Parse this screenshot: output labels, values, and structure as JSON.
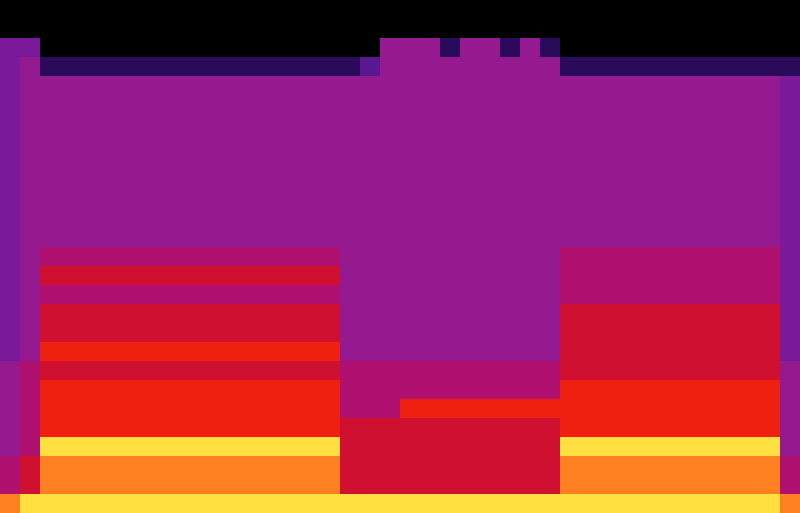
{
  "chart_data": {
    "type": "heatmap",
    "tick_labels": false,
    "color_range": [
      0,
      10
    ],
    "cells": [
      [
        0,
        0,
        0,
        0,
        0,
        0,
        0,
        0,
        0,
        0,
        0,
        0,
        0,
        0,
        0,
        0,
        0,
        0,
        0,
        0,
        0,
        0,
        0,
        0,
        0,
        0,
        0,
        0,
        0,
        0,
        0,
        0,
        0,
        0,
        0,
        0,
        0,
        0,
        0,
        0
      ],
      [
        0,
        0,
        0,
        0,
        0,
        0,
        0,
        0,
        0,
        0,
        0,
        0,
        0,
        0,
        0,
        0,
        0,
        0,
        0,
        0,
        0,
        0,
        0,
        0,
        0,
        0,
        0,
        0,
        0,
        0,
        0,
        0,
        0,
        0,
        0,
        0,
        0,
        0,
        0,
        0
      ],
      [
        3,
        3,
        0,
        0,
        0,
        0,
        0,
        0,
        0,
        0,
        0,
        0,
        0,
        0,
        0,
        0,
        0,
        0,
        0,
        4,
        4,
        4,
        1,
        4,
        4,
        1,
        4,
        1,
        0,
        0,
        0,
        0,
        0,
        0,
        0,
        0,
        0,
        0,
        0,
        0
      ],
      [
        3,
        4,
        1,
        1,
        1,
        1,
        1,
        1,
        1,
        1,
        1,
        1,
        1,
        1,
        1,
        1,
        1,
        1,
        2,
        4,
        4,
        4,
        4,
        4,
        4,
        4,
        4,
        4,
        1,
        1,
        1,
        1,
        1,
        1,
        1,
        1,
        1,
        1,
        1,
        1
      ],
      [
        3,
        4,
        4,
        4,
        4,
        4,
        4,
        4,
        4,
        4,
        4,
        4,
        4,
        4,
        4,
        4,
        4,
        4,
        4,
        4,
        4,
        4,
        4,
        4,
        4,
        4,
        4,
        4,
        4,
        4,
        4,
        4,
        4,
        4,
        4,
        4,
        4,
        4,
        4,
        3
      ],
      [
        3,
        4,
        4,
        4,
        4,
        4,
        4,
        4,
        4,
        4,
        4,
        4,
        4,
        4,
        4,
        4,
        4,
        4,
        4,
        4,
        4,
        4,
        4,
        4,
        4,
        4,
        4,
        4,
        4,
        4,
        4,
        4,
        4,
        4,
        4,
        4,
        4,
        4,
        4,
        3
      ],
      [
        3,
        4,
        4,
        4,
        4,
        4,
        4,
        4,
        4,
        4,
        4,
        4,
        4,
        4,
        4,
        4,
        4,
        4,
        4,
        4,
        4,
        4,
        4,
        4,
        4,
        4,
        4,
        4,
        4,
        4,
        4,
        4,
        4,
        4,
        4,
        4,
        4,
        4,
        4,
        3
      ],
      [
        3,
        4,
        4,
        4,
        4,
        4,
        4,
        4,
        4,
        4,
        4,
        4,
        4,
        4,
        4,
        4,
        4,
        4,
        4,
        4,
        4,
        4,
        4,
        4,
        4,
        4,
        4,
        4,
        4,
        4,
        4,
        4,
        4,
        4,
        4,
        4,
        4,
        4,
        4,
        3
      ],
      [
        3,
        4,
        4,
        4,
        4,
        4,
        4,
        4,
        4,
        4,
        4,
        4,
        4,
        4,
        4,
        4,
        4,
        4,
        4,
        4,
        4,
        4,
        4,
        4,
        4,
        4,
        4,
        4,
        4,
        4,
        4,
        4,
        4,
        4,
        4,
        4,
        4,
        4,
        4,
        3
      ],
      [
        3,
        4,
        4,
        4,
        4,
        4,
        4,
        4,
        4,
        4,
        4,
        4,
        4,
        4,
        4,
        4,
        4,
        4,
        4,
        4,
        4,
        4,
        4,
        4,
        4,
        4,
        4,
        4,
        4,
        4,
        4,
        4,
        4,
        4,
        4,
        4,
        4,
        4,
        4,
        3
      ],
      [
        3,
        4,
        4,
        4,
        4,
        4,
        4,
        4,
        4,
        4,
        4,
        4,
        4,
        4,
        4,
        4,
        4,
        4,
        4,
        4,
        4,
        4,
        4,
        4,
        4,
        4,
        4,
        4,
        4,
        4,
        4,
        4,
        4,
        4,
        4,
        4,
        4,
        4,
        4,
        3
      ],
      [
        3,
        4,
        4,
        4,
        4,
        4,
        4,
        4,
        4,
        4,
        4,
        4,
        4,
        4,
        4,
        4,
        4,
        4,
        4,
        4,
        4,
        4,
        4,
        4,
        4,
        4,
        4,
        4,
        4,
        4,
        4,
        4,
        4,
        4,
        4,
        4,
        4,
        4,
        4,
        3
      ],
      [
        3,
        4,
        4,
        4,
        4,
        4,
        4,
        4,
        4,
        4,
        4,
        4,
        4,
        4,
        4,
        4,
        4,
        4,
        4,
        4,
        4,
        4,
        4,
        4,
        4,
        4,
        4,
        4,
        4,
        4,
        4,
        4,
        4,
        4,
        4,
        4,
        4,
        4,
        4,
        3
      ],
      [
        3,
        4,
        5,
        5,
        5,
        5,
        5,
        5,
        5,
        5,
        5,
        5,
        5,
        5,
        5,
        5,
        5,
        4,
        4,
        4,
        4,
        4,
        4,
        4,
        4,
        4,
        4,
        4,
        5,
        5,
        5,
        5,
        5,
        5,
        5,
        5,
        5,
        5,
        5,
        3
      ],
      [
        3,
        4,
        6,
        6,
        6,
        6,
        6,
        6,
        6,
        6,
        6,
        6,
        6,
        6,
        6,
        6,
        6,
        4,
        4,
        4,
        4,
        4,
        4,
        4,
        4,
        4,
        4,
        4,
        5,
        5,
        5,
        5,
        5,
        5,
        5,
        5,
        5,
        5,
        5,
        3
      ],
      [
        3,
        4,
        5,
        5,
        5,
        5,
        5,
        5,
        5,
        5,
        5,
        5,
        5,
        5,
        5,
        5,
        5,
        4,
        4,
        4,
        4,
        4,
        4,
        4,
        4,
        4,
        4,
        4,
        5,
        5,
        5,
        5,
        5,
        5,
        5,
        5,
        5,
        5,
        5,
        3
      ],
      [
        3,
        4,
        6,
        6,
        6,
        6,
        6,
        6,
        6,
        6,
        6,
        6,
        6,
        6,
        6,
        6,
        6,
        4,
        4,
        4,
        4,
        4,
        4,
        4,
        4,
        4,
        4,
        4,
        6,
        6,
        6,
        6,
        6,
        6,
        6,
        6,
        6,
        6,
        6,
        3
      ],
      [
        3,
        4,
        6,
        6,
        6,
        6,
        6,
        6,
        6,
        6,
        6,
        6,
        6,
        6,
        6,
        6,
        6,
        4,
        4,
        4,
        4,
        4,
        4,
        4,
        4,
        4,
        4,
        4,
        6,
        6,
        6,
        6,
        6,
        6,
        6,
        6,
        6,
        6,
        6,
        3
      ],
      [
        3,
        4,
        7,
        7,
        7,
        7,
        7,
        7,
        7,
        7,
        7,
        7,
        7,
        7,
        7,
        7,
        7,
        4,
        4,
        4,
        4,
        4,
        4,
        4,
        4,
        4,
        4,
        4,
        6,
        6,
        6,
        6,
        6,
        6,
        6,
        6,
        6,
        6,
        6,
        3
      ],
      [
        4,
        5,
        6,
        6,
        6,
        6,
        6,
        6,
        6,
        6,
        6,
        6,
        6,
        6,
        6,
        6,
        6,
        5,
        5,
        5,
        5,
        5,
        5,
        5,
        5,
        5,
        5,
        5,
        6,
        6,
        6,
        6,
        6,
        6,
        6,
        6,
        6,
        6,
        6,
        4
      ],
      [
        4,
        5,
        7,
        7,
        7,
        7,
        7,
        7,
        7,
        7,
        7,
        7,
        7,
        7,
        7,
        7,
        7,
        5,
        5,
        5,
        5,
        5,
        5,
        5,
        5,
        5,
        5,
        5,
        7,
        7,
        7,
        7,
        7,
        7,
        7,
        7,
        7,
        7,
        7,
        4
      ],
      [
        4,
        5,
        7,
        7,
        7,
        7,
        7,
        7,
        7,
        7,
        7,
        7,
        7,
        7,
        7,
        7,
        7,
        5,
        5,
        5,
        7,
        7,
        7,
        7,
        7,
        7,
        7,
        7,
        7,
        7,
        7,
        7,
        7,
        7,
        7,
        7,
        7,
        7,
        7,
        4
      ],
      [
        4,
        5,
        7,
        7,
        7,
        7,
        7,
        7,
        7,
        7,
        7,
        7,
        7,
        7,
        7,
        7,
        7,
        6,
        6,
        6,
        6,
        6,
        6,
        6,
        6,
        6,
        6,
        6,
        7,
        7,
        7,
        7,
        7,
        7,
        7,
        7,
        7,
        7,
        7,
        4
      ],
      [
        4,
        5,
        9,
        9,
        9,
        9,
        9,
        9,
        9,
        9,
        9,
        9,
        9,
        9,
        9,
        9,
        9,
        6,
        6,
        6,
        6,
        6,
        6,
        6,
        6,
        6,
        6,
        6,
        9,
        9,
        9,
        9,
        9,
        9,
        9,
        9,
        9,
        9,
        9,
        4
      ],
      [
        5,
        6,
        8,
        8,
        8,
        8,
        8,
        8,
        8,
        8,
        8,
        8,
        8,
        8,
        8,
        8,
        8,
        6,
        6,
        6,
        6,
        6,
        6,
        6,
        6,
        6,
        6,
        6,
        8,
        8,
        8,
        8,
        8,
        8,
        8,
        8,
        8,
        8,
        8,
        5
      ],
      [
        5,
        6,
        8,
        8,
        8,
        8,
        8,
        8,
        8,
        8,
        8,
        8,
        8,
        8,
        8,
        8,
        8,
        6,
        6,
        6,
        6,
        6,
        6,
        6,
        6,
        6,
        6,
        6,
        8,
        8,
        8,
        8,
        8,
        8,
        8,
        8,
        8,
        8,
        8,
        5
      ],
      [
        8,
        9,
        9,
        9,
        9,
        9,
        9,
        9,
        9,
        9,
        9,
        9,
        9,
        9,
        9,
        9,
        9,
        9,
        9,
        9,
        9,
        9,
        9,
        9,
        9,
        9,
        9,
        9,
        9,
        9,
        9,
        9,
        9,
        9,
        9,
        9,
        9,
        9,
        9,
        8
      ]
    ]
  }
}
